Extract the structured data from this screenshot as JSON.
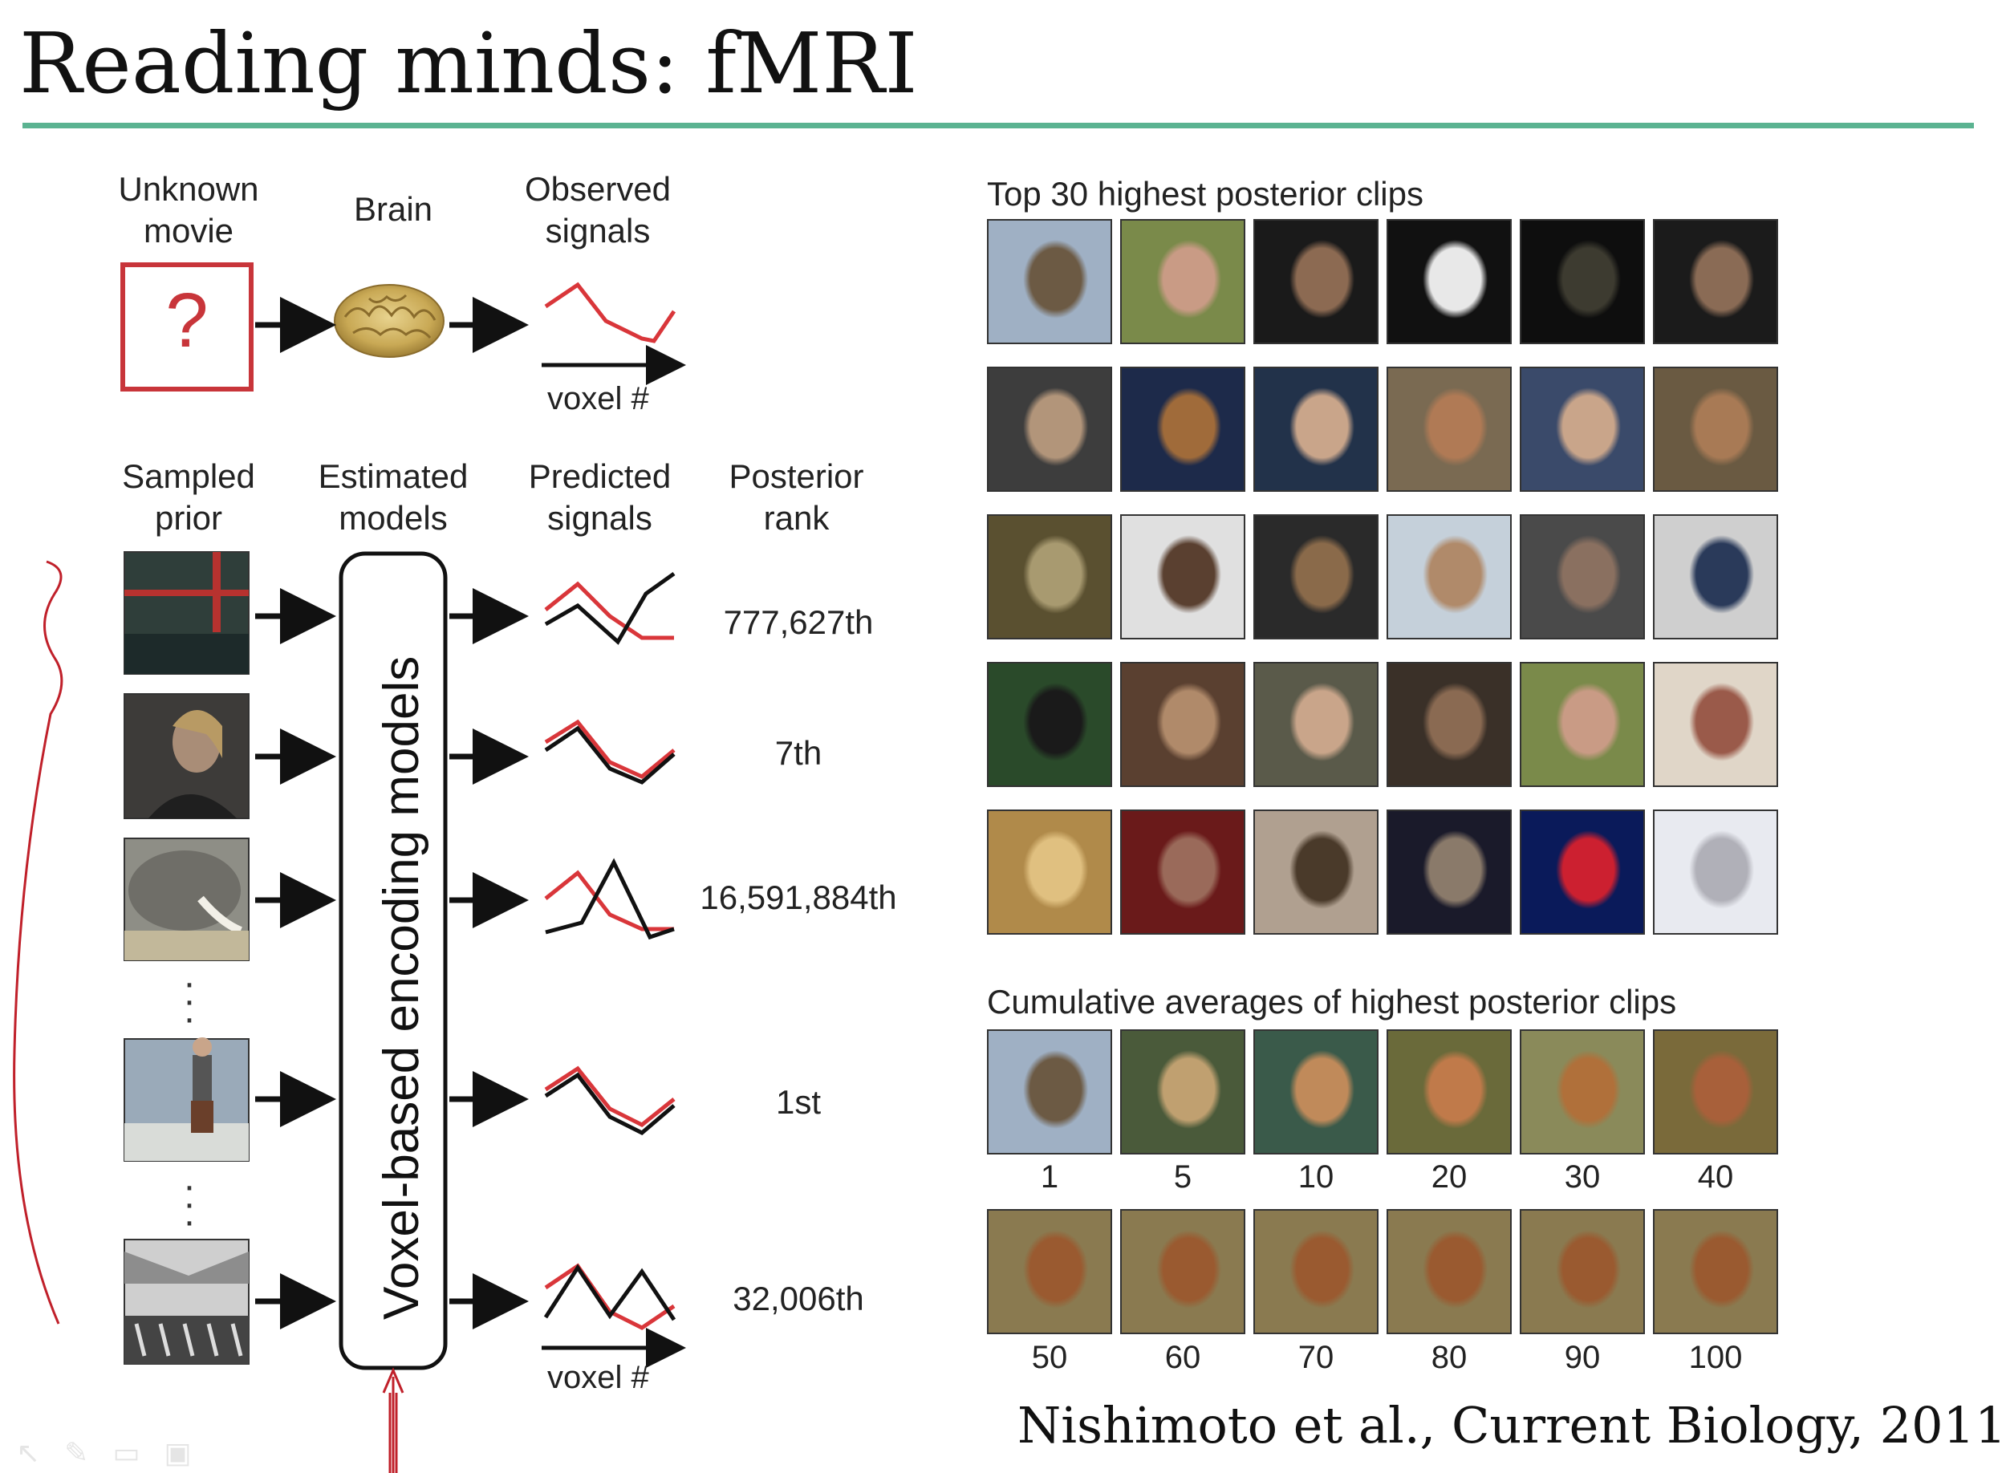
{
  "title": "Reading minds: fMRI",
  "citation": "Nishimoto et al., Current Biology, 2011",
  "top_row": {
    "headers": [
      {
        "line1": "Unknown",
        "line2": "movie"
      },
      {
        "line1": "Brain",
        "line2": ""
      },
      {
        "line1": "Observed",
        "line2": "signals"
      }
    ],
    "unknown_symbol": "?",
    "axis_label": "voxel #"
  },
  "bottom_section": {
    "headers": [
      {
        "line1": "Sampled",
        "line2": "prior"
      },
      {
        "line1": "Estimated",
        "line2": "models"
      },
      {
        "line1": "Predicted",
        "line2": "signals"
      },
      {
        "line1": "Posterior",
        "line2": "rank"
      }
    ],
    "model_box_label": "Voxel-based encoding models",
    "axis_label": "voxel #",
    "ranks": [
      "777,627th",
      "7th",
      "16,591,884th",
      "1st",
      "32,006th"
    ]
  },
  "right_panel": {
    "top30_label": "Top 30 highest posterior clips",
    "cumulative_label": "Cumulative averages of highest posterior clips",
    "cumulative_counts_row1": [
      "1",
      "5",
      "10",
      "20",
      "30",
      "40"
    ],
    "cumulative_counts_row2": [
      "50",
      "60",
      "70",
      "80",
      "90",
      "100"
    ]
  },
  "colors": {
    "accent_rule": "#5bb391",
    "signal_red": "#d9363a",
    "signal_black": "#111111",
    "annotation_red": "#c0202a"
  }
}
